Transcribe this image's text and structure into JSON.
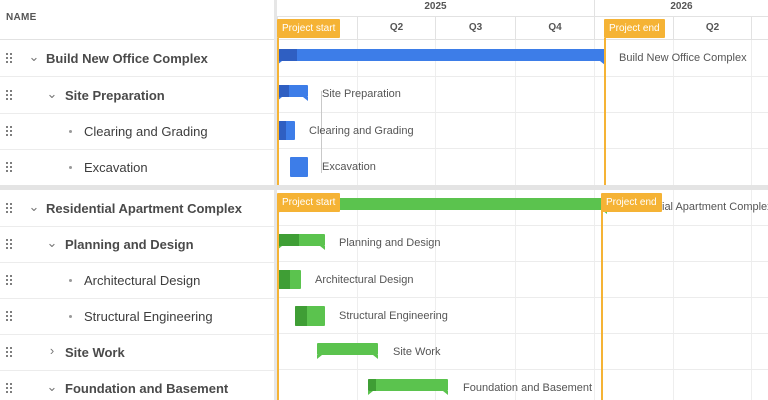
{
  "grid": {
    "header": "NAME",
    "rows": [
      {
        "label": "Build New Office Complex",
        "toggle": "expanded"
      },
      {
        "label": "Site Preparation",
        "toggle": "expanded"
      },
      {
        "label": "Clearing and Grading",
        "toggle": "none"
      },
      {
        "label": "Excavation",
        "toggle": "none"
      },
      {
        "label": "Residential Apartment Complex",
        "toggle": "expanded"
      },
      {
        "label": "Planning and Design",
        "toggle": "expanded"
      },
      {
        "label": "Architectural Design",
        "toggle": "none"
      },
      {
        "label": "Structural Engineering",
        "toggle": "none"
      },
      {
        "label": "Site Work",
        "toggle": "collapsed"
      },
      {
        "label": "Foundation and Basement",
        "toggle": "expanded"
      }
    ]
  },
  "timeline": {
    "years": [
      "2025",
      "2026"
    ],
    "quarters": [
      "Q2",
      "Q3",
      "Q4",
      "Q2"
    ],
    "bar_labels": [
      "Build New Office Complex",
      "Site Preparation",
      "Clearing and Grading",
      "Excavation",
      "ial Apartment Complex",
      "Planning and Design",
      "Architectural Design",
      "Structural Engineering",
      "Site Work",
      "Foundation and Basement"
    ],
    "markers": {
      "start": "Project start",
      "end": "Project end"
    }
  },
  "colors": {
    "blue_bar": "#3d7de8",
    "green_bar": "#5bc34e",
    "marker": "#f5b335"
  }
}
